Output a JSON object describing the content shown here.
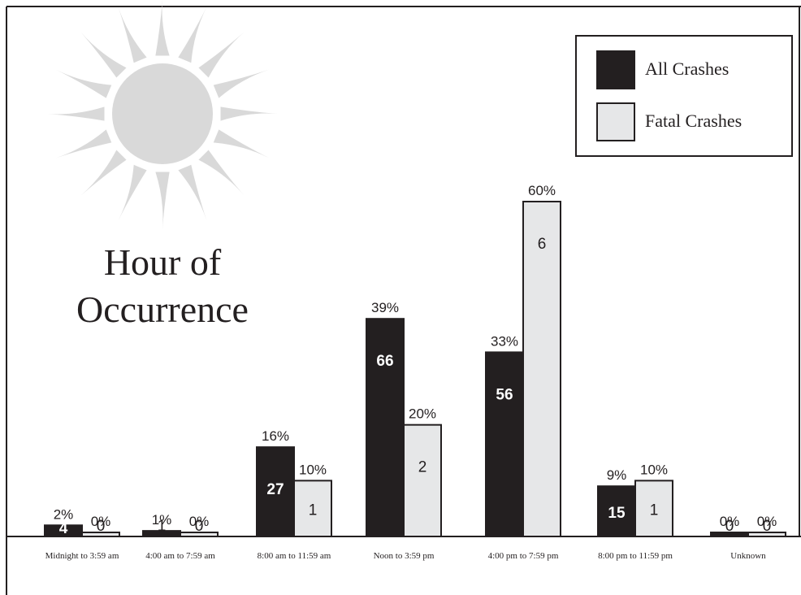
{
  "chart_data": {
    "type": "bar",
    "title": "Hour of Occurrence",
    "title_lines": [
      "Hour of",
      "Occurrence"
    ],
    "categories": [
      "Midnight to 3:59 am",
      "4:00 am to 7:59 am",
      "8:00 am to 11:59 am",
      "Noon to 3:59 pm",
      "4:00 pm to 7:59 pm",
      "8:00 pm to 11:59 pm",
      "Unknown"
    ],
    "series": [
      {
        "name": "All Crashes",
        "values": [
          4,
          1,
          27,
          66,
          56,
          15,
          0
        ],
        "percent_labels": [
          "2%",
          "1%",
          "16%",
          "39%",
          "33%",
          "9%",
          "0%"
        ],
        "color": "#231f20"
      },
      {
        "name": "Fatal Crashes",
        "values": [
          0,
          0,
          1,
          2,
          6,
          1,
          0
        ],
        "percent_labels": [
          "0%",
          "0%",
          "10%",
          "20%",
          "60%",
          "10%",
          "0%"
        ],
        "color": "#e6e7e8"
      }
    ],
    "percent_scale_max": 60,
    "legend": "top-right",
    "grid": false,
    "xlabel": "",
    "ylabel": ""
  }
}
